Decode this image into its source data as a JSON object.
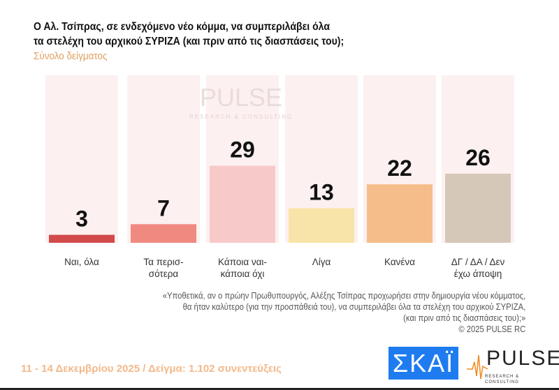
{
  "title_line1": "Ο Αλ. Τσίπρας, σε ενδεχόμενο νέο κόμμα, να συμπεριλάβει όλα",
  "title_line2": "τα στελέχη του αρχικού ΣΥΡΙΖΑ (και πριν από τις διασπάσεις του);",
  "subtitle": "Σύνολο δείγματος",
  "chart_data": {
    "type": "bar",
    "categories": [
      "Ναι, όλα",
      "Τα περισ-\nσότερα",
      "Κάποια ναι-\nκάποια όχι",
      "Λίγα",
      "Κανένα",
      "ΔΓ / ΔΑ / Δεν\nέχω άποψη"
    ],
    "values": [
      3,
      7,
      29,
      13,
      22,
      26
    ],
    "colors": [
      "#d24a4a",
      "#f08a80",
      "#f8c9c9",
      "#f8e4a8",
      "#f5bd8a",
      "#d6c8b8"
    ],
    "ylim": [
      0,
      63
    ],
    "grid": false
  },
  "watermark": {
    "word": "PULSE",
    "tagline": "RESEARCH & CONSULTING"
  },
  "note": [
    "«Υποθετικά, αν ο πρώην Πρωθυπουργός, Αλέξης Τσίπρας προχωρήσει στην δημιουργία νέου κόμματος,",
    "θα ήταν καλύτερο (για την προσπάθειά του), να συμπεριλάβει όλα τα στελέχη του αρχικού ΣΥΡΙΖΑ,",
    "(και πριν από τις διασπάσεις του);»",
    "©  2025  PULSE RC"
  ],
  "footer": "11 - 14 Δεκεμβρίου 2025  /  Δείγμα:  1.102 συνεντεύξεις",
  "logos": {
    "skai": "ΣΚΑΪ",
    "pulse": "PULSE",
    "pulse_tagline": "RESEARCH & CONSULTING"
  }
}
